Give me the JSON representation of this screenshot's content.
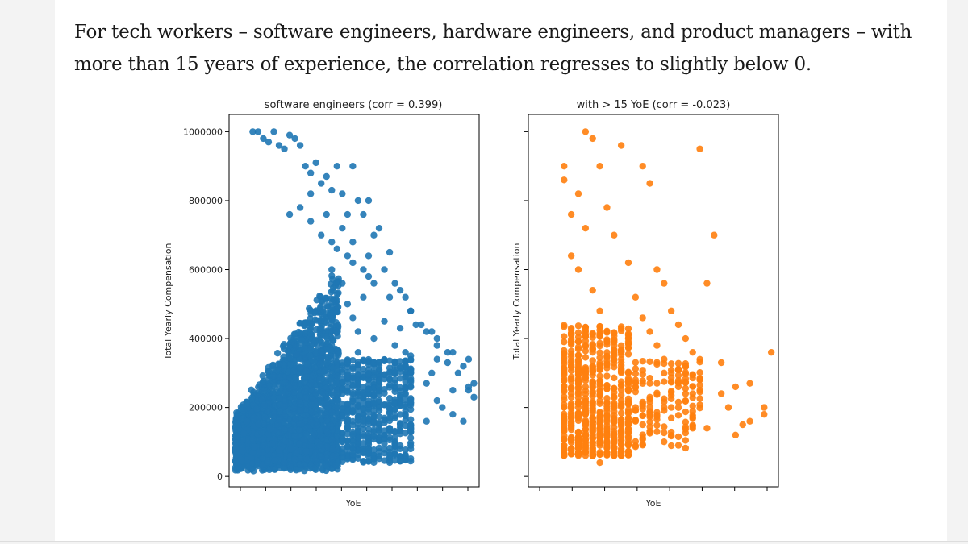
{
  "caption": "For tech workers – software engineers, hardware engineers, and product managers – with more than 15 years of experience, the correlation regresses to slightly below 0.",
  "chart_data": [
    {
      "type": "scatter",
      "title": "software engineers (corr = 0.399)",
      "xlabel": "YoE",
      "ylabel": "Total Yearly Compensation",
      "yticks": [
        0,
        200000,
        400000,
        600000,
        800000,
        1000000
      ],
      "ytick_labels": [
        "0",
        "200000",
        "400000",
        "600000",
        "800000",
        "1000000"
      ],
      "ylim": [
        -30000,
        1050000
      ],
      "xlim": [
        -1.5,
        46
      ],
      "color": "#1f77b4",
      "series": [
        {
          "x": [
            3,
            4,
            5,
            6,
            7,
            8,
            9,
            10,
            11,
            12,
            13,
            14,
            15,
            16,
            17,
            18,
            19,
            20,
            21,
            22,
            23,
            24,
            25,
            26,
            27,
            28,
            29,
            30,
            31,
            32,
            33,
            35,
            36,
            37,
            38,
            40,
            42,
            44,
            10,
            12,
            14,
            16,
            18,
            19,
            21,
            22,
            24,
            25,
            26,
            29,
            33,
            34,
            38,
            40,
            14,
            17,
            20,
            22,
            25,
            18,
            20,
            24,
            21,
            28,
            31,
            19,
            22,
            23,
            26,
            30,
            32,
            33,
            37,
            38,
            41,
            43,
            44,
            45,
            38,
            39,
            41,
            43,
            44,
            45,
            30,
            27,
            23,
            21,
            36,
            41,
            36,
            27,
            32
          ],
          "y": [
            1000000,
            1000000,
            980000,
            970000,
            1000000,
            960000,
            950000,
            990000,
            980000,
            960000,
            900000,
            880000,
            910000,
            850000,
            870000,
            830000,
            900000,
            820000,
            760000,
            900000,
            800000,
            760000,
            800000,
            700000,
            720000,
            600000,
            650000,
            560000,
            540000,
            520000,
            480000,
            440000,
            420000,
            420000,
            400000,
            360000,
            300000,
            340000,
            760000,
            780000,
            740000,
            700000,
            680000,
            660000,
            640000,
            620000,
            600000,
            580000,
            560000,
            520000,
            480000,
            440000,
            380000,
            330000,
            820000,
            760000,
            720000,
            680000,
            640000,
            600000,
            560000,
            520000,
            500000,
            450000,
            430000,
            480000,
            460000,
            420000,
            400000,
            380000,
            360000,
            350000,
            300000,
            340000,
            360000,
            320000,
            250000,
            270000,
            220000,
            200000,
            180000,
            160000,
            260000,
            230000,
            300000,
            330000,
            360000,
            330000,
            270000,
            250000,
            160000,
            200000,
            240000
          ]
        }
      ]
    },
    {
      "type": "scatter",
      "title": "with > 15 YoE (corr = -0.023)",
      "xlabel": "YoE",
      "ylabel": "Total Yearly Compensation",
      "ylim": [
        -30000,
        1050000
      ],
      "xlim": [
        11,
        46
      ],
      "color": "#ff7f0e",
      "series": [
        {
          "x": [
            16,
            16,
            16,
            17,
            17,
            17,
            18,
            18,
            18,
            19,
            19,
            19,
            20,
            20,
            20,
            21,
            21,
            21,
            22,
            22,
            22,
            23,
            23,
            24,
            24,
            25,
            25,
            26,
            26,
            27,
            27,
            28,
            28,
            29,
            29,
            30,
            30,
            31,
            31,
            32,
            32,
            33,
            33,
            34,
            35,
            36,
            37,
            38,
            40,
            42,
            44,
            45,
            20,
            21,
            19,
            18,
            24,
            22,
            26,
            28,
            30,
            33,
            38,
            41,
            44,
            36,
            40,
            42,
            39,
            35,
            31,
            27,
            25
          ],
          "y": [
            900000,
            860000,
            300000,
            760000,
            640000,
            240000,
            820000,
            600000,
            200000,
            1000000,
            720000,
            180000,
            980000,
            540000,
            160000,
            900000,
            480000,
            120000,
            780000,
            420000,
            100000,
            700000,
            380000,
            960000,
            340000,
            620000,
            300000,
            520000,
            280000,
            900000,
            460000,
            850000,
            420000,
            600000,
            380000,
            560000,
            340000,
            480000,
            300000,
            440000,
            260000,
            400000,
            240000,
            360000,
            950000,
            560000,
            700000,
            330000,
            260000,
            270000,
            200000,
            360000,
            60000,
            40000,
            80000,
            100000,
            120000,
            140000,
            160000,
            180000,
            200000,
            220000,
            240000,
            150000,
            180000,
            140000,
            120000,
            160000,
            200000,
            250000,
            200000,
            150000,
            110000
          ]
        }
      ]
    }
  ]
}
